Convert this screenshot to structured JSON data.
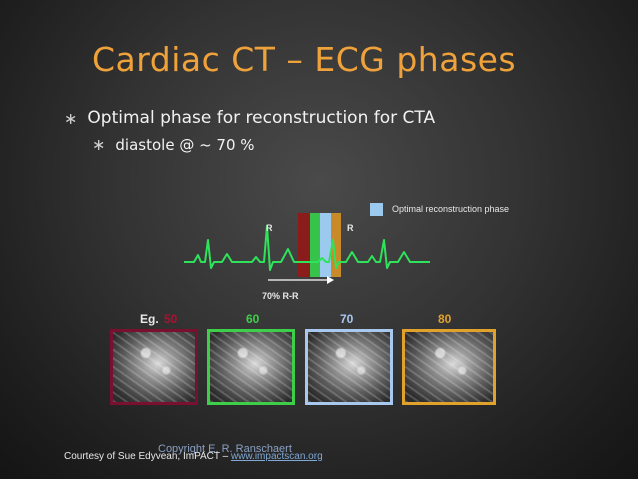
{
  "title": "Cardiac CT – ECG phases",
  "bullets": [
    "Optimal phase for reconstruction for CTA",
    "diastole @ ~ 70 %"
  ],
  "ecg": {
    "legend": "Optimal reconstruction phase",
    "r_label": "R",
    "phase_label": "70% R-R",
    "colors": {
      "ecg_line": "#2ee35a",
      "bar_red": "#8b1c1c",
      "bar_green": "#37c24b",
      "bar_blue": "#9cc9ee",
      "bar_orange": "#c98a2a"
    }
  },
  "examples": {
    "eg_label": "Eg.",
    "phases": [
      {
        "label": "50",
        "color": "#b01030",
        "border": "#7a1030"
      },
      {
        "label": "60",
        "color": "#3ecf4a",
        "border": "#3ecf4a"
      },
      {
        "label": "70",
        "color": "#a9c8ee",
        "border": "#a9c8ee"
      },
      {
        "label": "80",
        "color": "#e0a22a",
        "border": "#e0a22a"
      }
    ]
  },
  "credit": {
    "text": "Courtesy of Sue Edyvean, ImPACT – ",
    "link": "www.impactscan.org",
    "copyright": "Copyright E. R. Ranschaert"
  }
}
